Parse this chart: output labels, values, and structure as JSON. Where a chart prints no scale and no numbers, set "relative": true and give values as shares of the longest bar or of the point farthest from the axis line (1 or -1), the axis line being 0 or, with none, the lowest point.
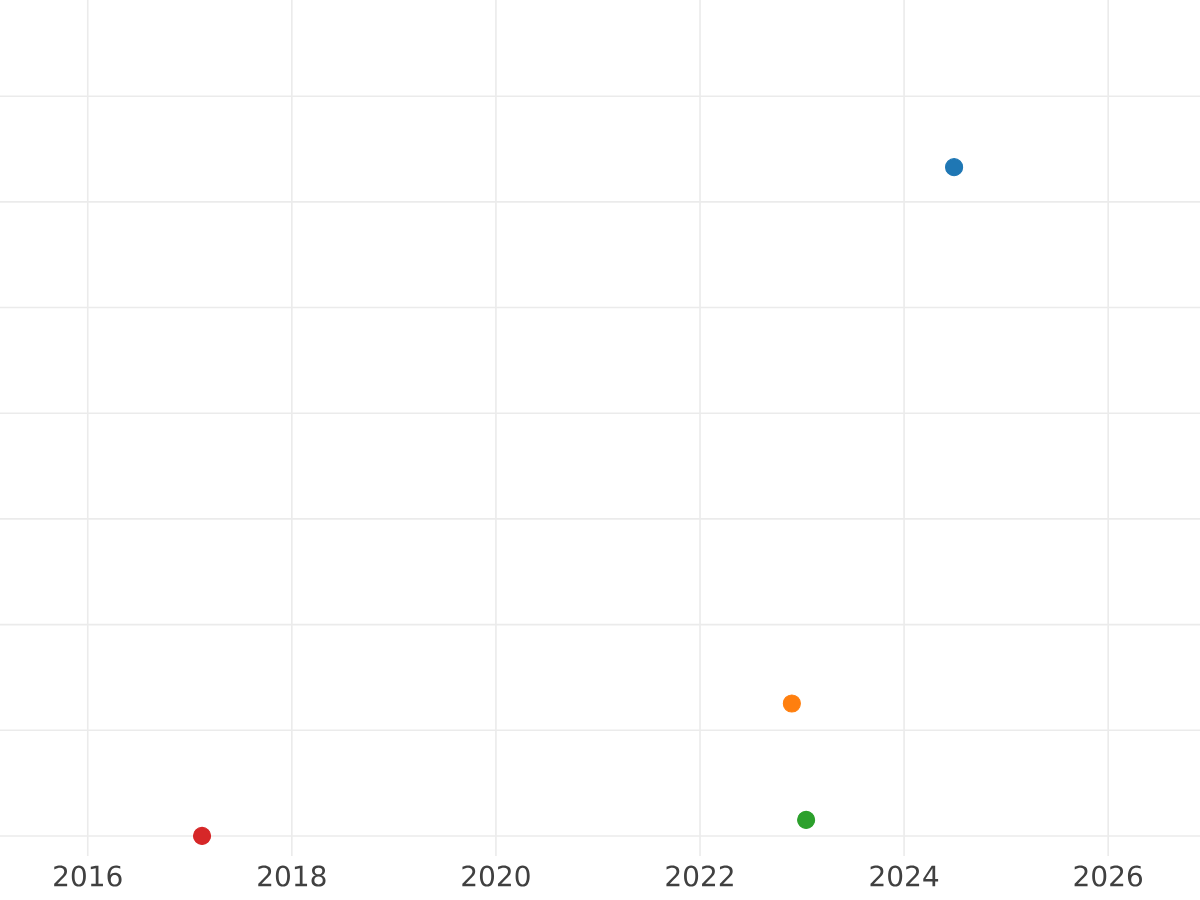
{
  "chart_data": {
    "type": "scatter",
    "relative": true,
    "x": [
      2024.49,
      2022.9,
      2023.04,
      2017.12
    ],
    "values": [
      1,
      0.198,
      0.024,
      0
    ],
    "colors": [
      "#1f77b4",
      "#ff7f0e",
      "#2ca02c",
      "#d62728"
    ],
    "xlim": [
      2015.14,
      2026.9
    ],
    "xticks": [
      {
        "value": 2016,
        "label": "2016"
      },
      {
        "value": 2018,
        "label": "2018"
      },
      {
        "value": 2020,
        "label": "2020"
      },
      {
        "value": 2022,
        "label": "2022"
      },
      {
        "value": 2024,
        "label": "2024"
      },
      {
        "value": 2026,
        "label": "2026"
      }
    ],
    "grid": true
  }
}
